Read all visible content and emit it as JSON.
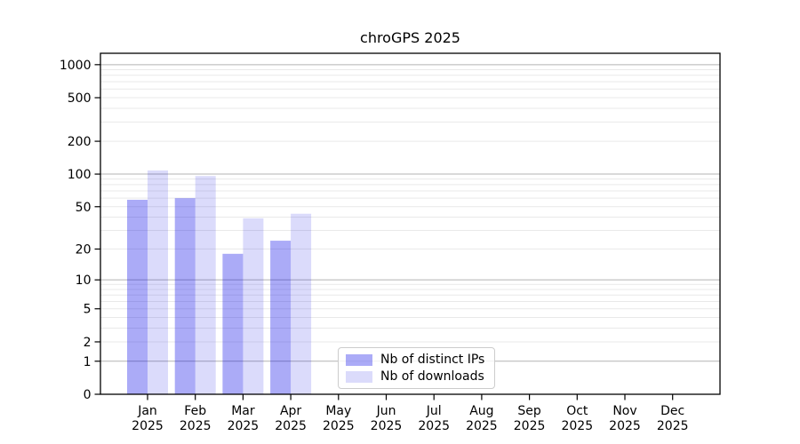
{
  "chart_data": {
    "type": "bar",
    "title": "chroGPS 2025",
    "year": "2025",
    "categories": [
      "Jan",
      "Feb",
      "Mar",
      "Apr",
      "May",
      "Jun",
      "Jul",
      "Aug",
      "Sep",
      "Oct",
      "Nov",
      "Dec"
    ],
    "series": [
      {
        "name": "Nb of distinct IPs",
        "color": "rgba(0,0,230,0.33)",
        "values": [
          58,
          60,
          18,
          24,
          0,
          0,
          0,
          0,
          0,
          0,
          0,
          0
        ]
      },
      {
        "name": "Nb of downloads",
        "color": "rgba(0,0,230,0.14)",
        "values": [
          108,
          96,
          39,
          43,
          0,
          0,
          0,
          0,
          0,
          0,
          0,
          0
        ]
      }
    ],
    "y_scale": "log1p",
    "y_ticks": [
      0,
      1,
      2,
      5,
      10,
      20,
      50,
      100,
      200,
      500,
      1000
    ],
    "y_major_gridlines": [
      1,
      10,
      100,
      1000
    ],
    "ylim": [
      0,
      1270
    ],
    "grid": true,
    "legend_position": "lower center"
  },
  "colors": {
    "axis": "#000000",
    "text": "#000000",
    "major_grid": "#b3b3b3",
    "minor_grid": "#e9e9e9",
    "legend_border": "#cccccc"
  }
}
